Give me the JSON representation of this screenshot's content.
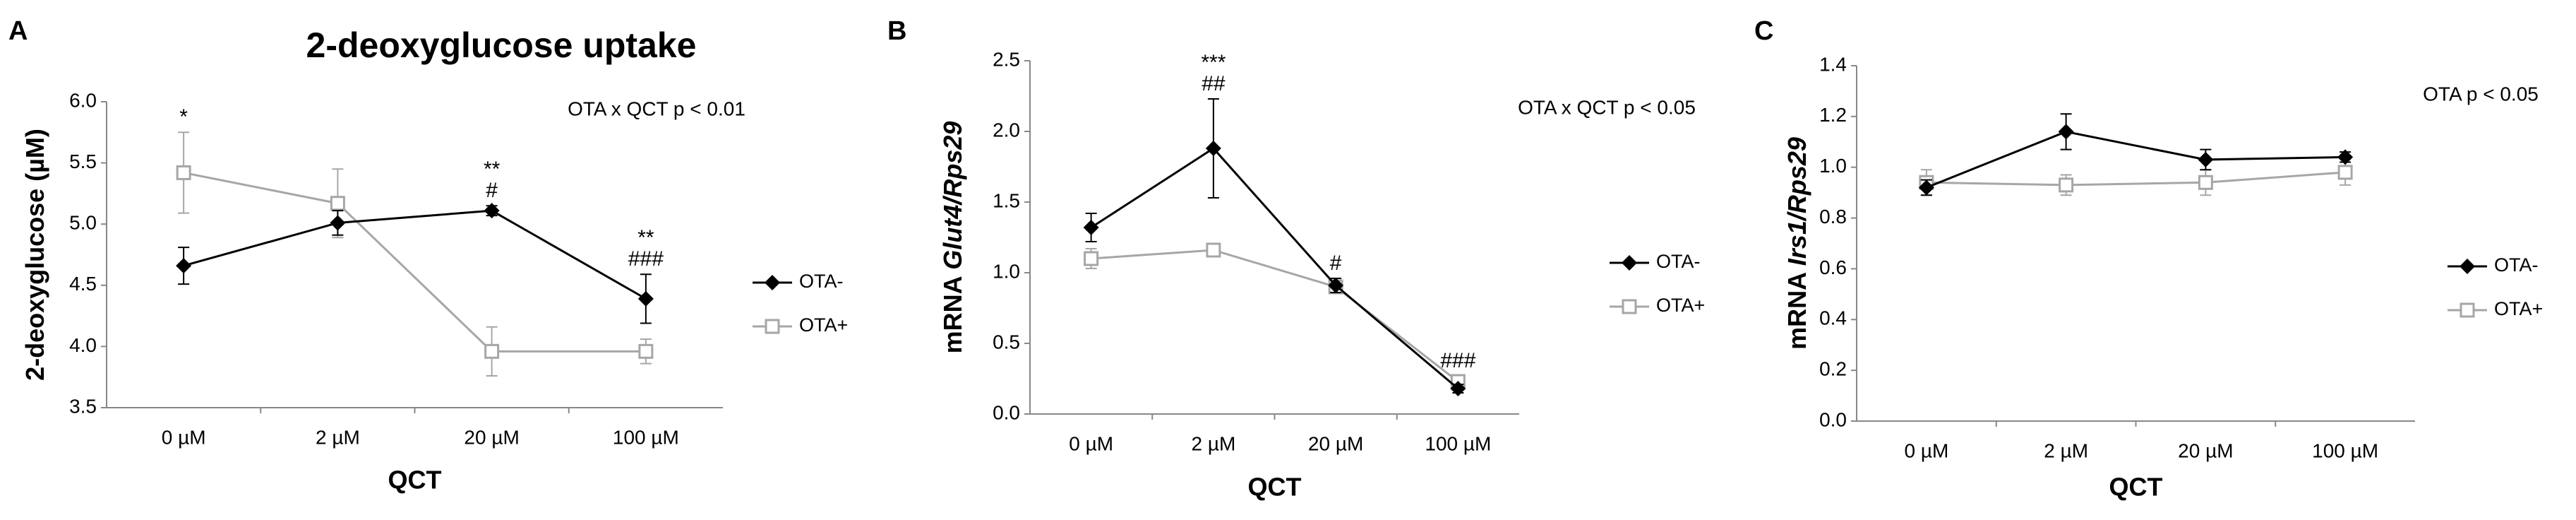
{
  "chart_data": [
    {
      "type": "line",
      "panel": "A",
      "title": "2-deoxyglucose uptake",
      "ylabel": [
        "2-deoxyglucose (µM)"
      ],
      "xlabel": "QCT",
      "annotation": "OTA x QCT p < 0.01",
      "categories": [
        "0 µM",
        "2 µM",
        "20 µM",
        "100 µM"
      ],
      "ylim": [
        3.5,
        6.0
      ],
      "yticks": [
        3.5,
        {
          "value": 4,
          "label": "4.0"
        },
        4.5,
        {
          "value": 5,
          "label": "5.0"
        },
        5.5,
        {
          "value": 6,
          "label": "6.0"
        }
      ],
      "series": [
        {
          "name": "OTA-",
          "color": "#000000",
          "marker": "diamond",
          "values": [
            4.66,
            5.01,
            5.11,
            4.39
          ],
          "errors": [
            0.15,
            0.1,
            0.04,
            0.2
          ]
        },
        {
          "name": "OTA+",
          "color": "#a6a6a6",
          "marker": "square",
          "values": [
            5.42,
            5.17,
            3.96,
            3.96
          ],
          "errors": [
            0.33,
            0.28,
            0.2,
            0.1
          ]
        }
      ],
      "significance": [
        [
          "*"
        ],
        [],
        [
          "**",
          "#"
        ],
        [
          "**",
          "###"
        ]
      ]
    },
    {
      "type": "line",
      "panel": "B",
      "ylabel": [
        "mRNA ",
        "Glut4/Rps29"
      ],
      "xlabel": "QCT",
      "annotation": "OTA x QCT p < 0.05",
      "categories": [
        "0 µM",
        "2 µM",
        "20 µM",
        "100 µM"
      ],
      "ylim": [
        0,
        2.5
      ],
      "yticks": [
        {
          "value": 0,
          "label": "0.0"
        },
        0.5,
        {
          "value": 1,
          "label": "1.0"
        },
        1.5,
        {
          "value": 2,
          "label": "2.0"
        },
        2.5
      ],
      "series": [
        {
          "name": "OTA-",
          "color": "#000000",
          "marker": "diamond",
          "values": [
            1.32,
            1.88,
            0.91,
            0.18
          ],
          "errors": [
            0.1,
            0.35,
            0.05,
            0.03
          ]
        },
        {
          "name": "OTA+",
          "color": "#a6a6a6",
          "marker": "square",
          "values": [
            1.1,
            1.16,
            0.9,
            0.23
          ],
          "errors": [
            0.07,
            0.03,
            0.04,
            0.04
          ]
        }
      ],
      "significance": [
        [],
        [
          "***",
          "##"
        ],
        [
          "#"
        ],
        [
          "###"
        ]
      ]
    },
    {
      "type": "line",
      "panel": "C",
      "ylabel": [
        "mRNA ",
        "Irs1/Rps29"
      ],
      "xlabel": "QCT",
      "annotation": "OTA  p < 0.05",
      "categories": [
        "0 µM",
        "2 µM",
        "20 µM",
        "100 µM"
      ],
      "ylim": [
        0,
        1.4
      ],
      "yticks": [
        {
          "value": 0,
          "label": "0.0"
        },
        0.2,
        0.4,
        0.6,
        0.8,
        {
          "value": 1,
          "label": "1.0"
        },
        1.2,
        1.4
      ],
      "series": [
        {
          "name": "OTA-",
          "color": "#000000",
          "marker": "diamond",
          "values": [
            0.92,
            1.14,
            1.03,
            1.04
          ],
          "errors": [
            0.03,
            0.07,
            0.04,
            0.02
          ]
        },
        {
          "name": "OTA+",
          "color": "#a6a6a6",
          "marker": "square",
          "values": [
            0.94,
            0.93,
            0.94,
            0.98
          ],
          "errors": [
            0.05,
            0.04,
            0.05,
            0.05
          ]
        }
      ],
      "significance": [
        [],
        [],
        [],
        []
      ]
    }
  ]
}
